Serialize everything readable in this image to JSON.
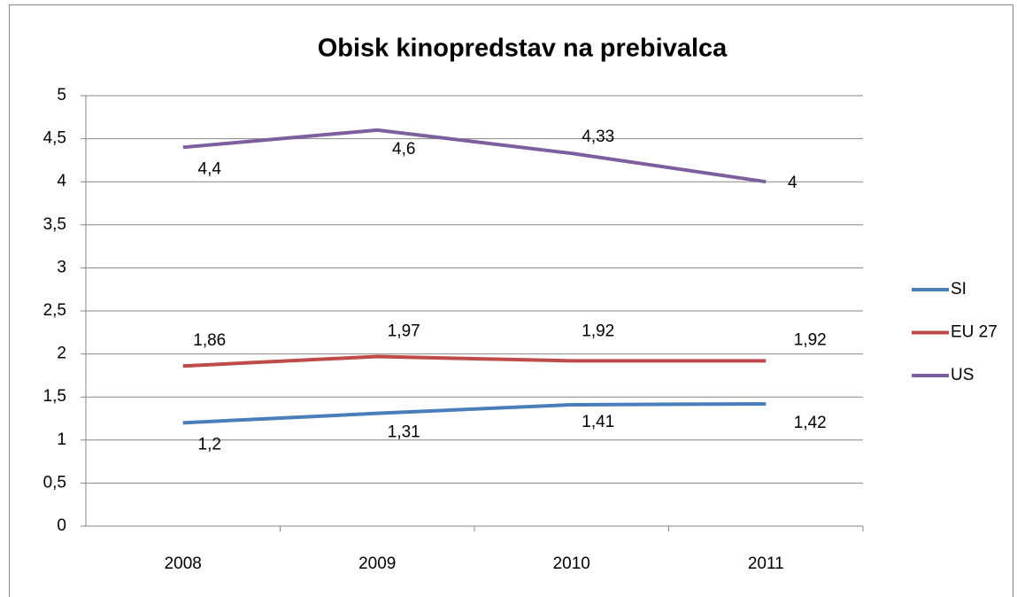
{
  "chart_data": {
    "type": "line",
    "title": "Obisk kinopredstav na prebivalca",
    "categories": [
      "2008",
      "2009",
      "2010",
      "2011"
    ],
    "series": [
      {
        "name": "SI",
        "color": "#4a7ebb",
        "values": [
          1.2,
          1.31,
          1.41,
          1.42
        ],
        "value_labels": [
          "1,2",
          "1,31",
          "1,41",
          "1,42"
        ]
      },
      {
        "name": "EU 27",
        "color": "#be4b48",
        "values": [
          1.86,
          1.97,
          1.92,
          1.92
        ],
        "value_labels": [
          "1,86",
          "1,97",
          "1,92",
          "1,92"
        ]
      },
      {
        "name": "US",
        "color": "#7d5fa0",
        "values": [
          4.4,
          4.6,
          4.33,
          4
        ],
        "value_labels": [
          "4,4",
          "4,6",
          "4,33",
          "4"
        ]
      }
    ],
    "ylim": [
      0,
      5
    ],
    "yticks": [
      0,
      {
        "value": 0.5,
        "label": "0,5"
      },
      1,
      {
        "value": 1.5,
        "label": "1,5"
      },
      2,
      {
        "value": 2.5,
        "label": "2,5"
      },
      3,
      {
        "value": 3.5,
        "label": "3,5"
      },
      4,
      {
        "value": 4.5,
        "label": "4,5"
      },
      5
    ],
    "grid": true,
    "legend": "right"
  }
}
